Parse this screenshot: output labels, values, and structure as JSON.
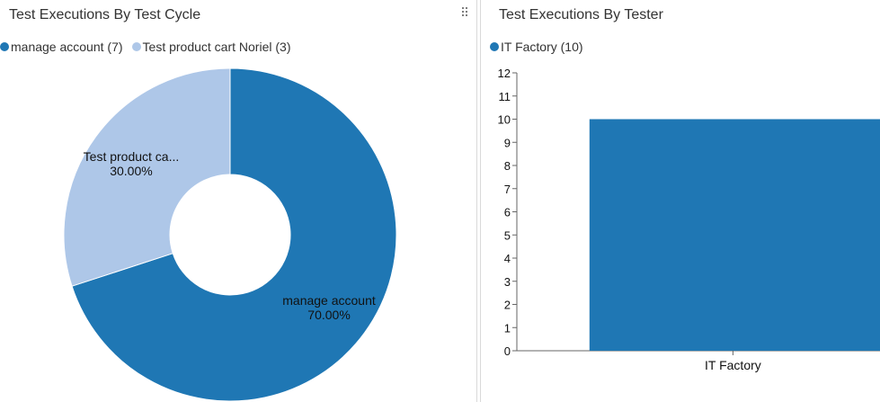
{
  "colors": {
    "series_primary": "#1f77b4",
    "series_secondary": "#aec7e8",
    "axis": "#666666",
    "text": "#333333"
  },
  "icons": {
    "drag_handle": "drag-handle-icon"
  },
  "left_panel": {
    "title": "Test Executions By Test Cycle",
    "legend": [
      {
        "label": "manage account (7)",
        "color": "#1f77b4"
      },
      {
        "label": "Test product cart Noriel (3)",
        "color": "#aec7e8"
      }
    ]
  },
  "right_panel": {
    "title": "Test Executions By Tester",
    "legend": [
      {
        "label": "IT Factory (10)",
        "color": "#1f77b4"
      }
    ]
  },
  "chart_data": [
    {
      "type": "pie",
      "donut": true,
      "title": "Test Executions By Test Cycle",
      "slices": [
        {
          "name": "manage account",
          "value": 7,
          "percent": "70.00%",
          "label": "manage account",
          "color": "#1f77b4"
        },
        {
          "name": "Test product cart Noriel",
          "value": 3,
          "percent": "30.00%",
          "label": "Test product ca...",
          "color": "#aec7e8"
        }
      ],
      "legend_position": "top-left"
    },
    {
      "type": "bar",
      "title": "Test Executions By Tester",
      "categories": [
        "IT Factory"
      ],
      "series": [
        {
          "name": "IT Factory",
          "values": [
            10
          ],
          "color": "#1f77b4"
        }
      ],
      "ylim": [
        0,
        12
      ],
      "yticks": [
        0,
        1,
        2,
        3,
        4,
        5,
        6,
        7,
        8,
        9,
        10,
        11,
        12
      ],
      "grid": false,
      "legend_position": "top-left"
    }
  ]
}
